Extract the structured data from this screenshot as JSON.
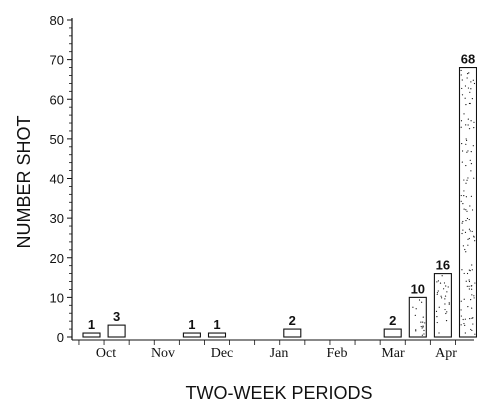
{
  "chart_data": {
    "type": "bar",
    "xlabel": "TWO-WEEK PERIODS",
    "ylabel": "NUMBER SHOT",
    "ylim": [
      0,
      80
    ],
    "yticks": [
      0,
      10,
      20,
      30,
      40,
      50,
      60,
      70,
      80
    ],
    "grid": false,
    "legend": "none",
    "month_labels": [
      "Oct",
      "Nov",
      "Dec",
      "Jan",
      "Feb",
      "Mar",
      "Apr"
    ],
    "periods": [
      {
        "period": 1,
        "value": 1
      },
      {
        "period": 2,
        "value": 3
      },
      {
        "period": 3,
        "value": 0
      },
      {
        "period": 4,
        "value": 0
      },
      {
        "period": 5,
        "value": 1
      },
      {
        "period": 6,
        "value": 1
      },
      {
        "period": 7,
        "value": 0
      },
      {
        "period": 8,
        "value": 0
      },
      {
        "period": 9,
        "value": 2
      },
      {
        "period": 10,
        "value": 0
      },
      {
        "period": 11,
        "value": 0
      },
      {
        "period": 12,
        "value": 0
      },
      {
        "period": 13,
        "value": 2
      },
      {
        "period": 14,
        "value": 10
      },
      {
        "period": 15,
        "value": 16
      },
      {
        "period": 16,
        "value": 68
      }
    ],
    "value_labels": [
      {
        "period": 1,
        "label": "1"
      },
      {
        "period": 2,
        "label": "3"
      },
      {
        "period": 5,
        "label": "1"
      },
      {
        "period": 6,
        "label": "1"
      },
      {
        "period": 9,
        "label": "2"
      },
      {
        "period": 13,
        "label": "2"
      },
      {
        "period": 14,
        "label": "10"
      },
      {
        "period": 15,
        "label": "16"
      },
      {
        "period": 16,
        "label": "68"
      }
    ],
    "stippled_periods": [
      14,
      15,
      16
    ],
    "colors": {
      "ink": "#111111",
      "background": "#ffffff"
    }
  }
}
